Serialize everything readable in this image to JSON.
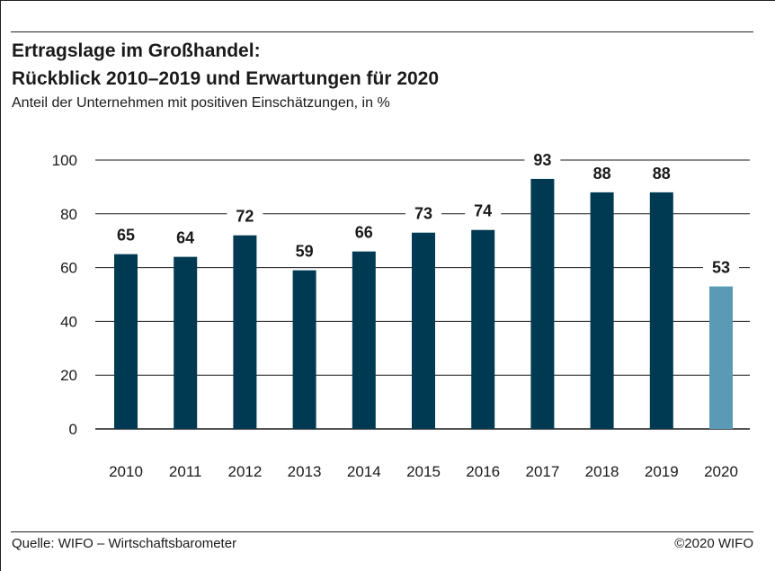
{
  "title_line1": "Ertragslage im Großhandel:",
  "title_line2": "Rückblick 2010–2019 und Erwartungen für 2020",
  "subtitle": "Anteil der Unternehmen mit positiven Einschätzungen, in %",
  "source": "Quelle: WIFO – Wirtschaftsbarometer",
  "copyright": "©2020 WIFO",
  "colors": {
    "bar_actual": "#003a52",
    "bar_expectation": "#5a9ab4",
    "grid": "#1a1a1a",
    "text": "#1a1a1a"
  },
  "chart_data": {
    "type": "bar",
    "categories": [
      "2010",
      "2011",
      "2012",
      "2013",
      "2014",
      "2015",
      "2016",
      "2017",
      "2018",
      "2019",
      "2020"
    ],
    "values": [
      65,
      64,
      72,
      59,
      66,
      73,
      74,
      93,
      88,
      88,
      53
    ],
    "data_labels": [
      "65",
      "64",
      "72",
      "59",
      "66",
      "73",
      "74",
      "93",
      "88",
      "88",
      "53"
    ],
    "highlight_category": "2020",
    "ylim": [
      0,
      100
    ],
    "yticks": [
      0,
      20,
      40,
      60,
      80,
      100
    ],
    "grid": true,
    "xlabel": "",
    "ylabel": ""
  }
}
